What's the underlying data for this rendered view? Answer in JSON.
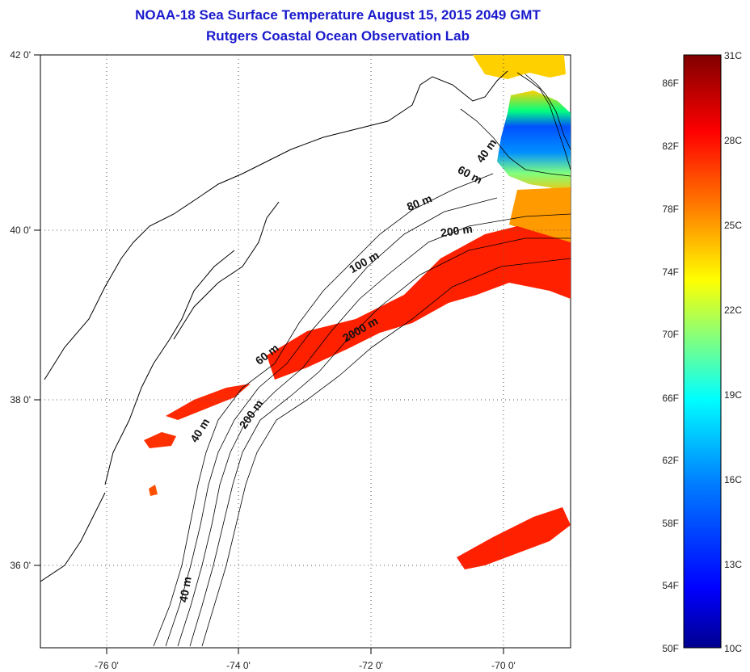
{
  "title": "NOAA-18 Sea Surface Temperature August 15, 2015 2049 GMT",
  "subtitle": "Rutgers Coastal Ocean Observation Lab",
  "map": {
    "lon_ticks": [
      {
        "value": -76,
        "label": "-76 0'"
      },
      {
        "value": -74,
        "label": "-74 0'"
      },
      {
        "value": -72,
        "label": "-72 0'"
      },
      {
        "value": -70,
        "label": "-70 0'"
      }
    ],
    "lat_ticks": [
      {
        "value": 42,
        "label": "42 0'"
      },
      {
        "value": 40,
        "label": "40 0'"
      },
      {
        "value": 38,
        "label": "38 0'"
      },
      {
        "value": 36,
        "label": "36 0'"
      }
    ],
    "lon_range": [
      -77,
      -69
    ],
    "lat_range": [
      35,
      42
    ],
    "grid": "dotted",
    "contour_labels": [
      "40 m",
      "60 m",
      "80 m",
      "200 m",
      "100 m",
      "2000 m",
      "60 m",
      "40 m",
      "200 m",
      "40 m"
    ]
  },
  "colorbar": {
    "fahrenheit_labels": [
      "86F",
      "82F",
      "78F",
      "74F",
      "70F",
      "66F",
      "62F",
      "58F",
      "54F",
      "50F"
    ],
    "celsius_labels": [
      "31C",
      "28C",
      "25C",
      "22C",
      "19C",
      "16C",
      "13C",
      "10C"
    ],
    "min_c": 10,
    "max_c": 31,
    "colors": [
      "#00008f",
      "#0000ff",
      "#0080ff",
      "#00ffff",
      "#80ff80",
      "#ffff00",
      "#ff8000",
      "#ff0000",
      "#800000"
    ]
  }
}
